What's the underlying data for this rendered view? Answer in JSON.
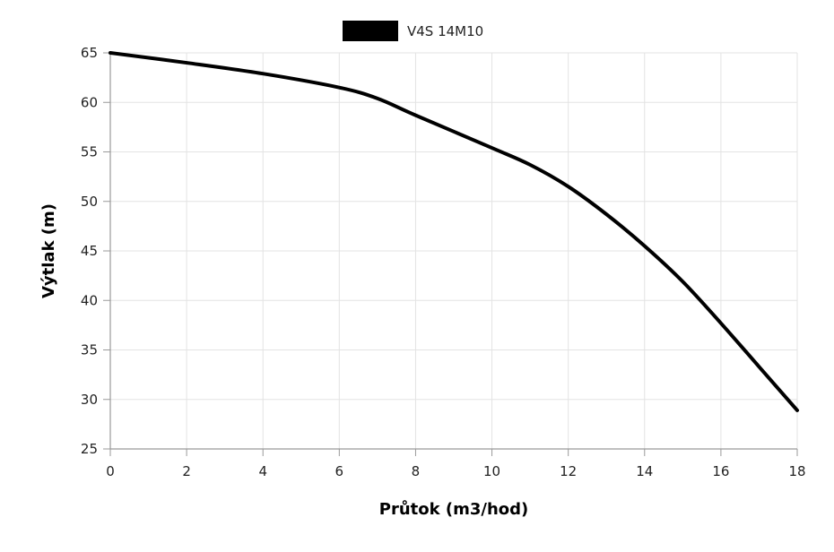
{
  "chart_data": {
    "type": "line",
    "xlabel": "Průtok (m3/hod)",
    "ylabel": "Výtlak (m)",
    "xlim": [
      0,
      18
    ],
    "ylim": [
      25,
      65
    ],
    "xticks": [
      0,
      2,
      4,
      6,
      8,
      10,
      12,
      14,
      16,
      18
    ],
    "yticks": [
      25,
      30,
      35,
      40,
      45,
      50,
      55,
      60,
      65
    ],
    "grid": true,
    "legend_position": "top-center",
    "series": [
      {
        "name": "V4S 14M10",
        "color": "#000000",
        "x": [
          0,
          2,
          4,
          6,
          7,
          8,
          10,
          11,
          12,
          13,
          14,
          15,
          16,
          17,
          18
        ],
        "y": [
          65,
          64,
          62.9,
          61.5,
          60.4,
          58.7,
          55.4,
          53.7,
          51.5,
          48.7,
          45.5,
          41.9,
          37.7,
          33.3,
          28.9
        ]
      }
    ]
  }
}
